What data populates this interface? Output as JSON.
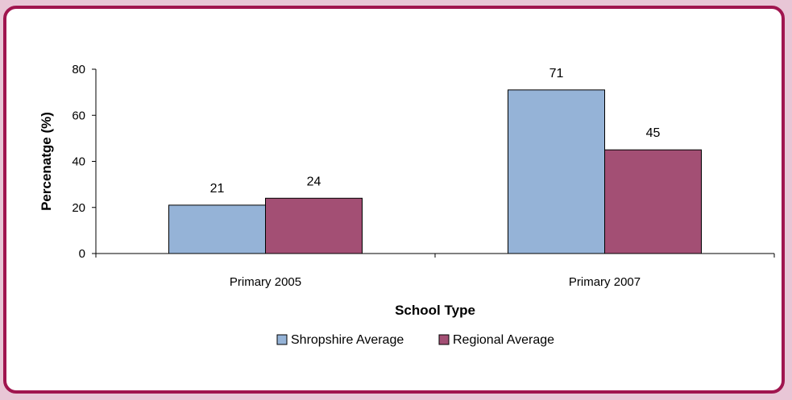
{
  "chart_data": {
    "type": "bar",
    "categories": [
      "Primary 2005",
      "Primary 2007"
    ],
    "series": [
      {
        "name": "Shropshire Average",
        "values": [
          21,
          71
        ],
        "color": "#95b3d7"
      },
      {
        "name": "Regional Average",
        "values": [
          24,
          45
        ],
        "color": "#a34f74"
      }
    ],
    "xlabel": "School Type",
    "ylabel": "Percenatge (%)",
    "ylim": [
      0,
      80
    ],
    "yticks": [
      "0",
      "20",
      "40",
      "60",
      "80"
    ],
    "data_labels": [
      "21",
      "71",
      "24",
      "45"
    ],
    "legend_position": "bottom",
    "grid": false
  }
}
